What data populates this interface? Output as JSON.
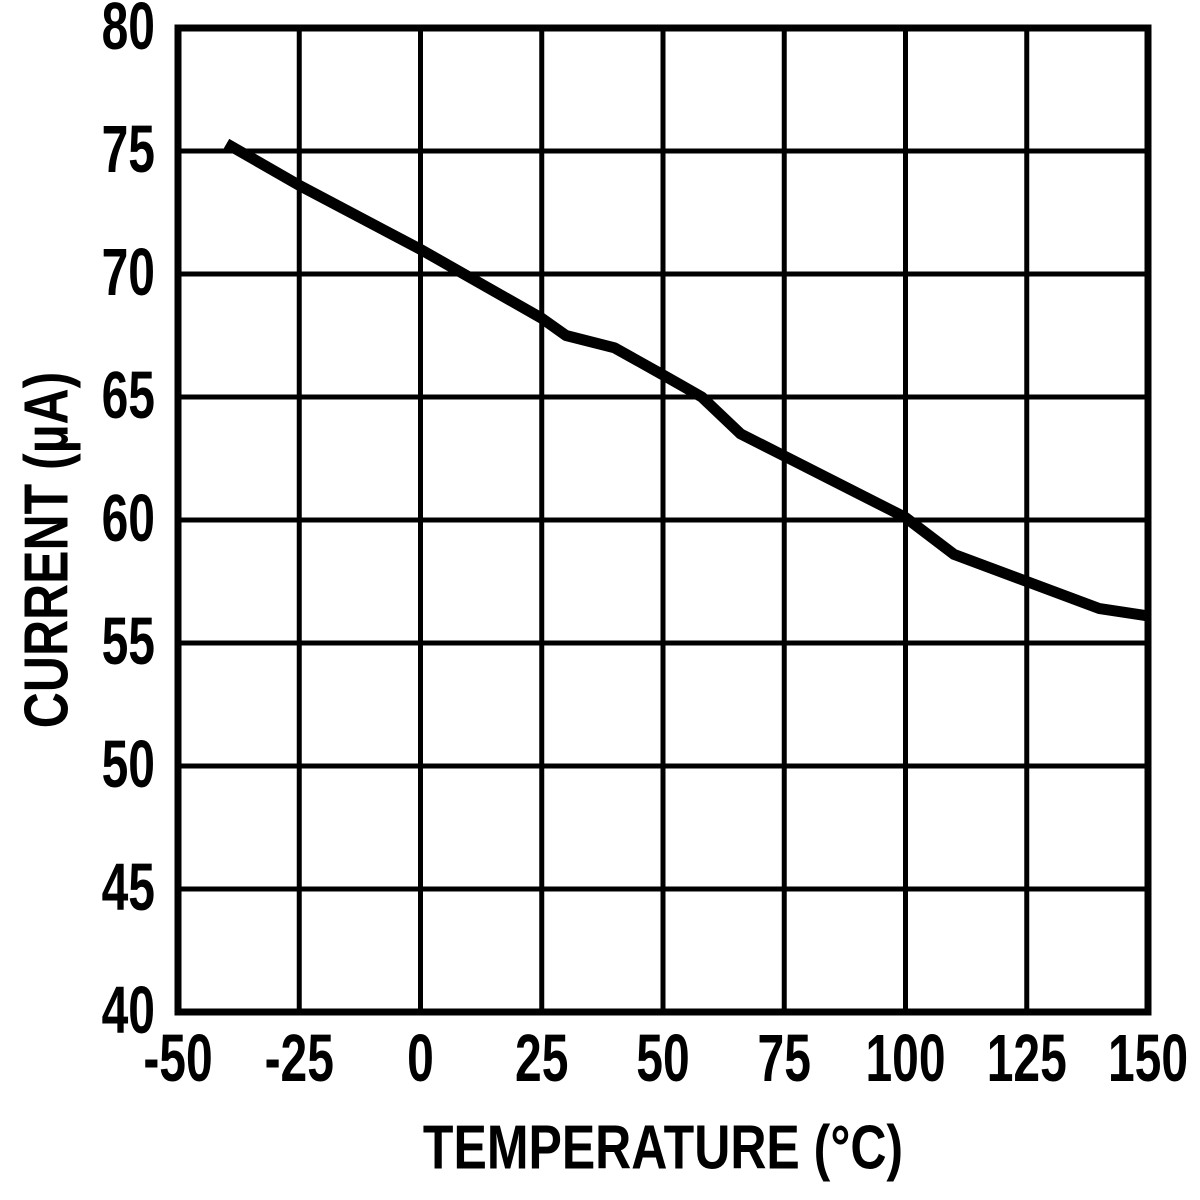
{
  "figure": {
    "background_color": "#ffffff",
    "line_color": "#000000",
    "grid_color": "#000000",
    "frame_color": "#000000",
    "text_color": "#000000"
  },
  "chart_data": {
    "type": "line",
    "title": "",
    "xlabel": "TEMPERATURE (°C)",
    "ylabel": "CURRENT (µA)",
    "xlim": [
      -50,
      150
    ],
    "ylim": [
      40,
      80
    ],
    "xticks": [
      -50,
      -25,
      0,
      25,
      50,
      75,
      100,
      125,
      150
    ],
    "xtick_labels": [
      "-50",
      "-25",
      "0",
      "25",
      "50",
      "75",
      "100",
      "125",
      "150"
    ],
    "yticks": [
      80,
      75,
      70,
      65,
      60,
      55,
      50,
      45,
      40
    ],
    "ytick_labels": [
      "80",
      "75",
      "70",
      "65",
      "60",
      "55",
      "50",
      "45",
      "40"
    ],
    "grid": true,
    "legend": "none",
    "series": [
      {
        "name": "current-vs-temperature",
        "points": [
          [
            -40,
            75.3
          ],
          [
            -25,
            73.6
          ],
          [
            0,
            71.0
          ],
          [
            25,
            68.2
          ],
          [
            30,
            67.5
          ],
          [
            40,
            67.0
          ],
          [
            50,
            65.9
          ],
          [
            58,
            65.0
          ],
          [
            66,
            63.5
          ],
          [
            75,
            62.6
          ],
          [
            100,
            60.1
          ],
          [
            110,
            58.6
          ],
          [
            125,
            57.5
          ],
          [
            140,
            56.4
          ],
          [
            150,
            56.1
          ]
        ]
      }
    ]
  }
}
